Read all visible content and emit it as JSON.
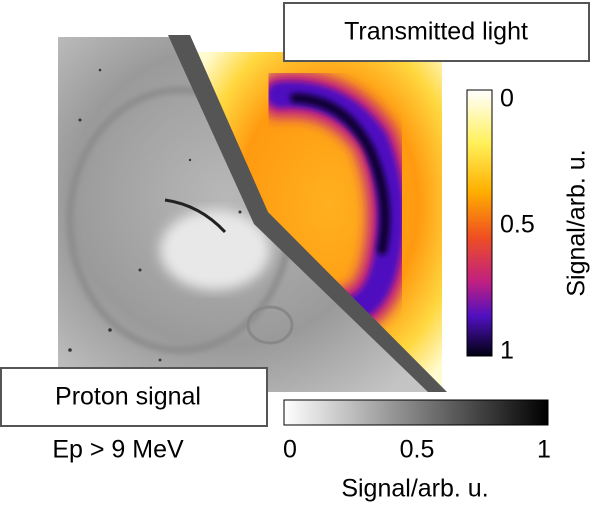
{
  "top_label": "Transmitted light",
  "bottom_label": "Proton signal",
  "energy_label": "Ep > 9 MeV",
  "color_scale": {
    "ticks": [
      0,
      0.5,
      1
    ],
    "label": "Signal/arb. u."
  },
  "gray_scale": {
    "ticks": [
      0,
      0.5,
      1
    ],
    "label": "Signal/arb. u."
  }
}
